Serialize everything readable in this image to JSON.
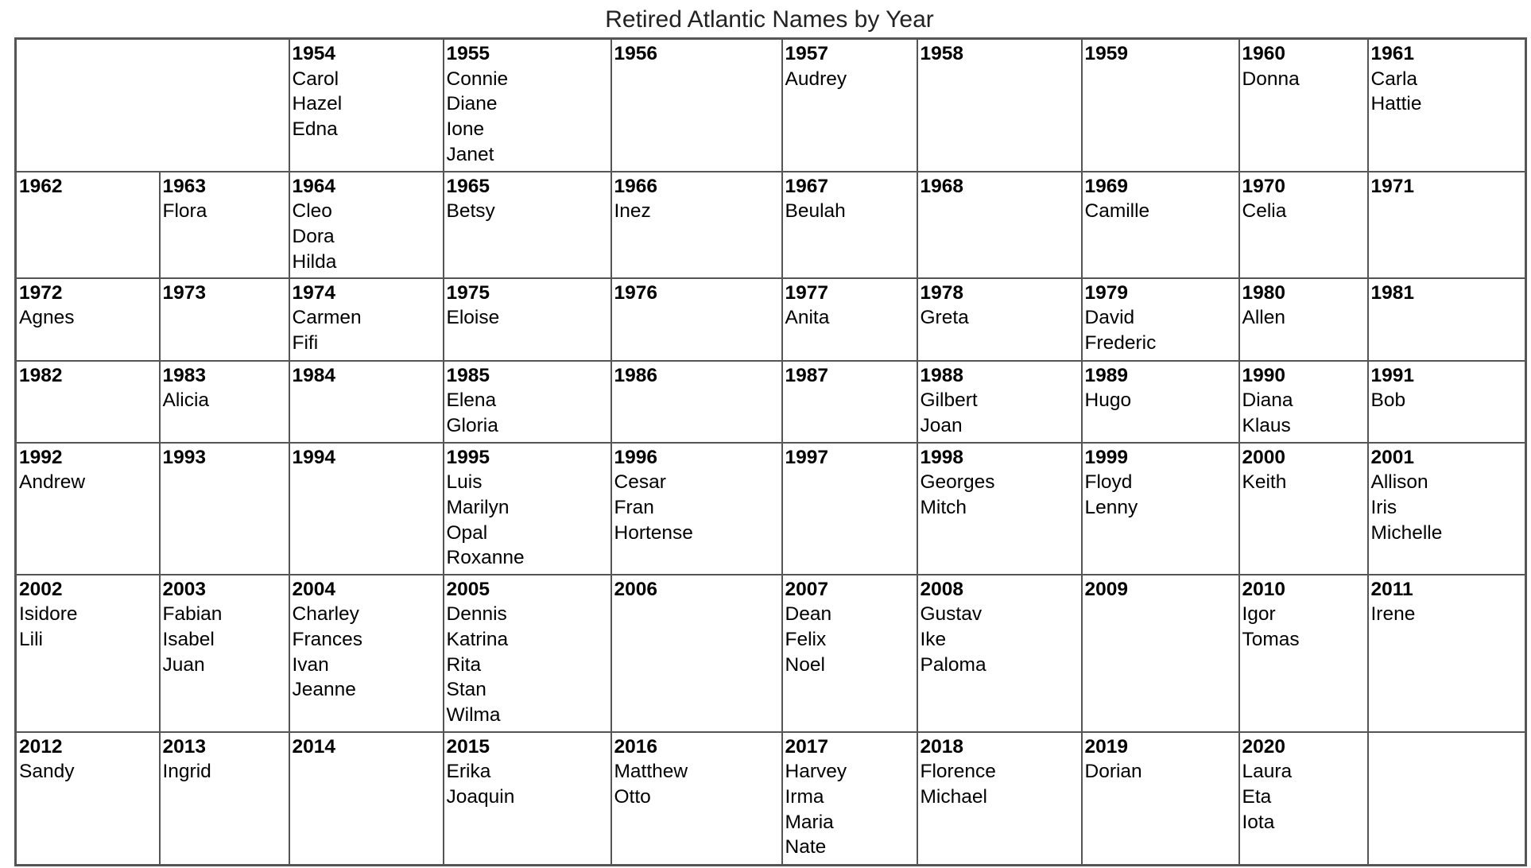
{
  "title": "Retired Atlantic Names by Year",
  "rows": [
    [
      {
        "empty": true,
        "colspan": 2
      },
      {
        "year": "1954",
        "names": [
          "Carol",
          "Hazel",
          "Edna"
        ]
      },
      {
        "year": "1955",
        "names": [
          "Connie",
          "Diane",
          "Ione",
          "Janet"
        ]
      },
      {
        "year": "1956",
        "names": []
      },
      {
        "year": "1957",
        "names": [
          "Audrey"
        ]
      },
      {
        "year": "1958",
        "names": []
      },
      {
        "year": "1959",
        "names": []
      },
      {
        "year": "1960",
        "names": [
          "Donna"
        ]
      },
      {
        "year": "1961",
        "names": [
          "Carla",
          "Hattie"
        ]
      }
    ],
    [
      {
        "year": "1962",
        "names": []
      },
      {
        "year": "1963",
        "names": [
          "Flora"
        ]
      },
      {
        "year": "1964",
        "names": [
          "Cleo",
          "Dora",
          "Hilda"
        ]
      },
      {
        "year": "1965",
        "names": [
          "Betsy"
        ]
      },
      {
        "year": "1966",
        "names": [
          "Inez"
        ]
      },
      {
        "year": "1967",
        "names": [
          "Beulah"
        ]
      },
      {
        "year": "1968",
        "names": []
      },
      {
        "year": "1969",
        "names": [
          "Camille"
        ]
      },
      {
        "year": "1970",
        "names": [
          "Celia"
        ]
      },
      {
        "year": "1971",
        "names": []
      }
    ],
    [
      {
        "year": "1972",
        "names": [
          "Agnes"
        ]
      },
      {
        "year": "1973",
        "names": []
      },
      {
        "year": "1974",
        "names": [
          "Carmen",
          "Fifi"
        ]
      },
      {
        "year": "1975",
        "names": [
          "Eloise"
        ]
      },
      {
        "year": "1976",
        "names": []
      },
      {
        "year": "1977",
        "names": [
          "Anita"
        ]
      },
      {
        "year": "1978",
        "names": [
          "Greta"
        ]
      },
      {
        "year": "1979",
        "names": [
          "David",
          "Frederic"
        ]
      },
      {
        "year": "1980",
        "names": [
          "Allen"
        ]
      },
      {
        "year": "1981",
        "names": []
      }
    ],
    [
      {
        "year": "1982",
        "names": []
      },
      {
        "year": "1983",
        "names": [
          "Alicia"
        ]
      },
      {
        "year": "1984",
        "names": []
      },
      {
        "year": "1985",
        "names": [
          "Elena",
          "Gloria"
        ]
      },
      {
        "year": "1986",
        "names": []
      },
      {
        "year": "1987",
        "names": []
      },
      {
        "year": "1988",
        "names": [
          "Gilbert",
          "Joan"
        ]
      },
      {
        "year": "1989",
        "names": [
          "Hugo"
        ]
      },
      {
        "year": "1990",
        "names": [
          "Diana",
          "Klaus"
        ]
      },
      {
        "year": "1991",
        "names": [
          "Bob"
        ]
      }
    ],
    [
      {
        "year": "1992",
        "names": [
          "Andrew"
        ]
      },
      {
        "year": "1993",
        "names": []
      },
      {
        "year": "1994",
        "names": []
      },
      {
        "year": "1995",
        "names": [
          "Luis",
          "Marilyn",
          "Opal",
          "Roxanne"
        ]
      },
      {
        "year": "1996",
        "names": [
          "Cesar",
          "Fran",
          "Hortense"
        ]
      },
      {
        "year": "1997",
        "names": []
      },
      {
        "year": "1998",
        "names": [
          "Georges",
          "Mitch"
        ]
      },
      {
        "year": "1999",
        "names": [
          "Floyd",
          "Lenny"
        ]
      },
      {
        "year": "2000",
        "names": [
          "Keith"
        ]
      },
      {
        "year": "2001",
        "names": [
          "Allison",
          "Iris",
          "Michelle"
        ]
      }
    ],
    [
      {
        "year": "2002",
        "names": [
          "Isidore",
          "Lili"
        ]
      },
      {
        "year": "2003",
        "names": [
          "Fabian",
          "Isabel",
          "Juan"
        ]
      },
      {
        "year": "2004",
        "names": [
          "Charley",
          "Frances",
          "Ivan",
          "Jeanne"
        ]
      },
      {
        "year": "2005",
        "names": [
          "Dennis",
          "Katrina",
          "Rita",
          "Stan",
          "Wilma"
        ]
      },
      {
        "year": "2006",
        "names": []
      },
      {
        "year": "2007",
        "names": [
          "Dean",
          "Felix",
          "Noel"
        ]
      },
      {
        "year": "2008",
        "names": [
          "Gustav",
          "Ike",
          "Paloma"
        ]
      },
      {
        "year": "2009",
        "names": []
      },
      {
        "year": "2010",
        "names": [
          "Igor",
          "Tomas"
        ]
      },
      {
        "year": "2011",
        "names": [
          "Irene"
        ]
      }
    ],
    [
      {
        "year": "2012",
        "names": [
          "Sandy"
        ]
      },
      {
        "year": "2013",
        "names": [
          "Ingrid"
        ]
      },
      {
        "year": "2014",
        "names": []
      },
      {
        "year": "2015",
        "names": [
          "Erika",
          "Joaquin"
        ]
      },
      {
        "year": "2016",
        "names": [
          "Matthew",
          "Otto"
        ]
      },
      {
        "year": "2017",
        "names": [
          "Harvey",
          "Irma",
          "Maria",
          "Nate"
        ]
      },
      {
        "year": "2018",
        "names": [
          "Florence",
          "Michael"
        ]
      },
      {
        "year": "2019",
        "names": [
          "Dorian"
        ]
      },
      {
        "year": "2020",
        "names": [
          "Laura",
          "Eta",
          "Iota"
        ]
      },
      {
        "empty": true
      }
    ]
  ]
}
